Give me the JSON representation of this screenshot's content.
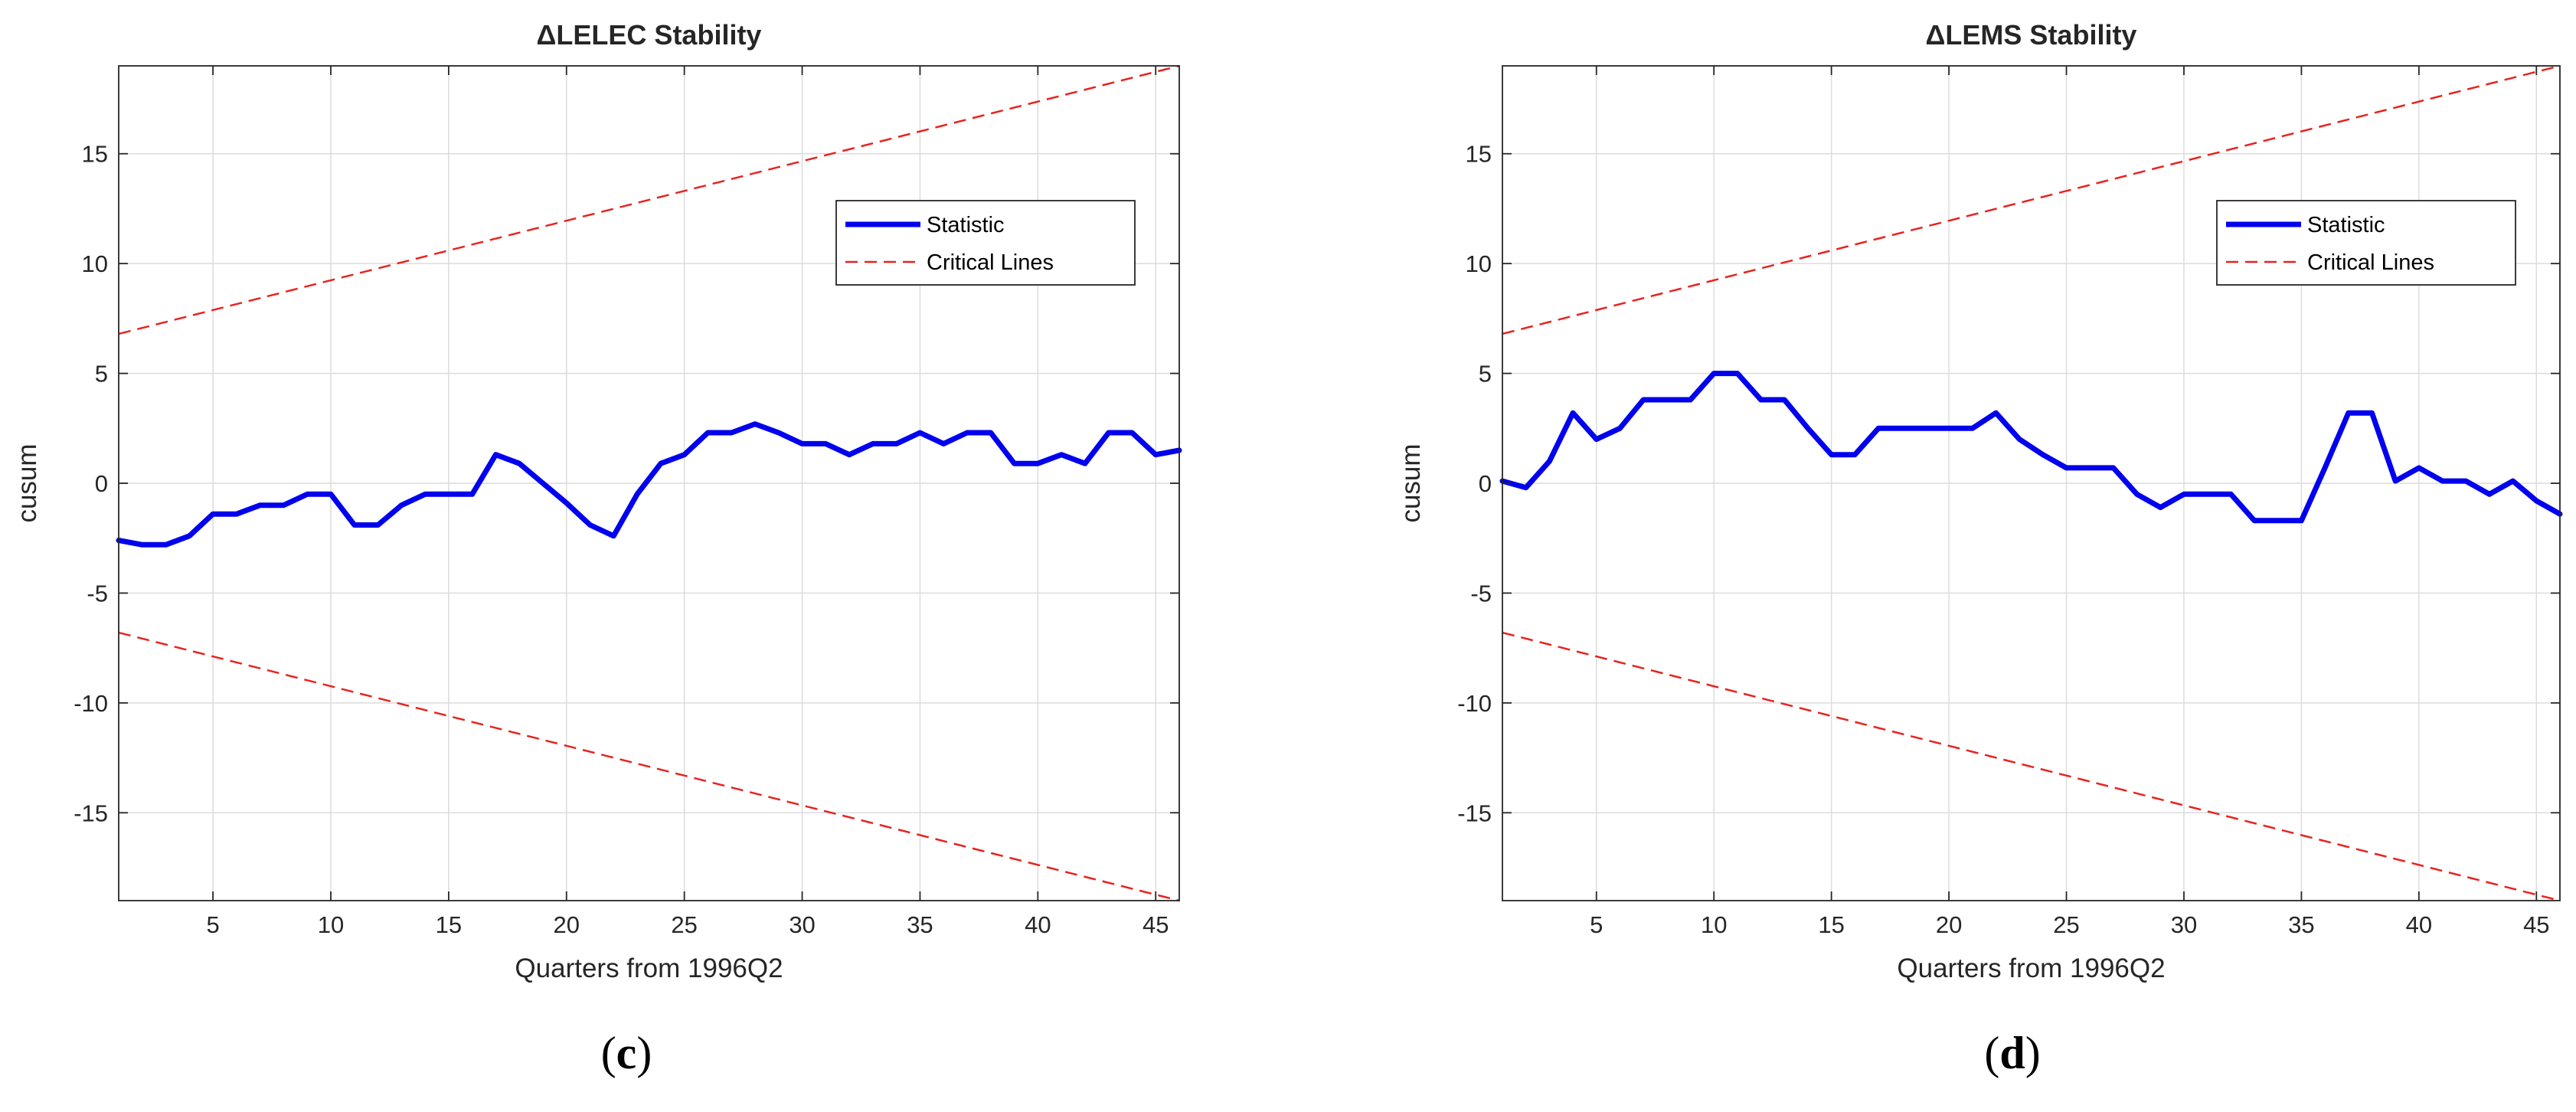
{
  "chart_data": [
    {
      "type": "line",
      "panel": "(c)",
      "panel_letter": "c",
      "title": "ΔLELEC Stability",
      "xlabel": "Quarters from 1996Q2",
      "ylabel": "cusum",
      "xlim": [
        1,
        46
      ],
      "ylim": [
        -19,
        19
      ],
      "xticks": [
        5,
        10,
        15,
        20,
        25,
        30,
        35,
        40,
        45
      ],
      "yticks": [
        -15,
        -10,
        -5,
        0,
        5,
        10,
        15
      ],
      "grid": true,
      "legend_position": "top-right",
      "series": [
        {
          "name": "Statistic",
          "color": "#0000ee",
          "style": "solid",
          "x": [
            1,
            2,
            3,
            4,
            5,
            6,
            7,
            8,
            9,
            10,
            11,
            12,
            13,
            14,
            15,
            16,
            17,
            18,
            19,
            20,
            21,
            22,
            23,
            24,
            25,
            26,
            27,
            28,
            29,
            30,
            31,
            32,
            33,
            34,
            35,
            36,
            37,
            38,
            39,
            40,
            41,
            42,
            43,
            44,
            45,
            46
          ],
          "values": [
            -2.6,
            -2.8,
            -2.8,
            -2.4,
            -1.4,
            -1.4,
            -1.0,
            -1.0,
            -0.5,
            -0.5,
            -1.9,
            -1.9,
            -1.0,
            -0.5,
            -0.5,
            -0.5,
            1.3,
            0.9,
            0.0,
            -0.9,
            -1.9,
            -2.4,
            -0.5,
            0.9,
            1.3,
            2.3,
            2.3,
            2.7,
            2.3,
            1.8,
            1.8,
            1.3,
            1.8,
            1.8,
            2.3,
            1.8,
            2.3,
            2.3,
            0.9,
            0.9,
            1.3,
            0.9,
            2.3,
            2.3,
            1.3,
            1.5
          ]
        },
        {
          "name": "Critical Lines",
          "color": "#e8231f",
          "style": "dashed",
          "x": [
            1,
            46
          ],
          "upper": [
            6.8,
            19.0
          ],
          "lower": [
            -6.8,
            -19.0
          ]
        }
      ]
    },
    {
      "type": "line",
      "panel": "(d)",
      "panel_letter": "d",
      "title": "ΔLEMS Stability",
      "xlabel": "Quarters from 1996Q2",
      "ylabel": "cusum",
      "xlim": [
        1,
        46
      ],
      "ylim": [
        -19,
        19
      ],
      "xticks": [
        5,
        10,
        15,
        20,
        25,
        30,
        35,
        40,
        45
      ],
      "yticks": [
        -15,
        -10,
        -5,
        0,
        5,
        10,
        15
      ],
      "grid": true,
      "legend_position": "top-right",
      "series": [
        {
          "name": "Statistic",
          "color": "#0000ee",
          "style": "solid",
          "x": [
            1,
            2,
            3,
            4,
            5,
            6,
            7,
            8,
            9,
            10,
            11,
            12,
            13,
            14,
            15,
            16,
            17,
            18,
            19,
            20,
            21,
            22,
            23,
            24,
            25,
            26,
            27,
            28,
            29,
            30,
            31,
            32,
            33,
            34,
            35,
            36,
            37,
            38,
            39,
            40,
            41,
            42,
            43,
            44,
            45,
            46
          ],
          "values": [
            0.1,
            -0.2,
            1.0,
            3.2,
            2.0,
            2.5,
            3.8,
            3.8,
            3.8,
            5.0,
            5.0,
            3.8,
            3.8,
            2.5,
            1.3,
            1.3,
            2.5,
            2.5,
            2.5,
            2.5,
            2.5,
            3.2,
            2.0,
            1.3,
            0.7,
            0.7,
            0.7,
            -0.5,
            -1.1,
            -0.5,
            -0.5,
            -0.5,
            -1.7,
            -1.7,
            -1.7,
            0.7,
            3.2,
            3.2,
            0.1,
            0.7,
            0.1,
            0.1,
            -0.5,
            0.1,
            -0.8,
            -1.4
          ]
        },
        {
          "name": "Critical Lines",
          "color": "#e8231f",
          "style": "dashed",
          "x": [
            1,
            46
          ],
          "upper": [
            6.8,
            19.0
          ],
          "lower": [
            -6.8,
            -19.0
          ]
        }
      ]
    }
  ]
}
